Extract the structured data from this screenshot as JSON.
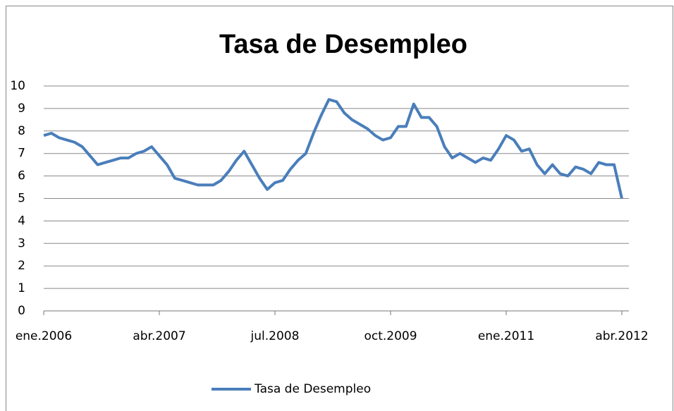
{
  "chart_data": {
    "type": "line",
    "title": "Tasa de Desempleo",
    "categories": [
      "ene.2006",
      null,
      null,
      null,
      null,
      null,
      null,
      null,
      null,
      null,
      null,
      null,
      null,
      null,
      null,
      "abr.2007",
      null,
      null,
      null,
      null,
      null,
      null,
      null,
      null,
      null,
      null,
      null,
      null,
      null,
      null,
      "jul.2008",
      null,
      null,
      null,
      null,
      null,
      null,
      null,
      null,
      null,
      null,
      null,
      null,
      null,
      null,
      "oct.2009",
      null,
      null,
      null,
      null,
      null,
      null,
      null,
      null,
      null,
      null,
      null,
      null,
      null,
      null,
      "ene.2011",
      null,
      null,
      null,
      null,
      null,
      null,
      null,
      null,
      null,
      null,
      null,
      null,
      null,
      null,
      "abr.2012"
    ],
    "series": [
      {
        "name": "Tasa de Desempleo",
        "color": "#4a7ebb",
        "values": [
          7.8,
          7.9,
          7.7,
          7.6,
          7.5,
          7.3,
          6.9,
          6.5,
          6.6,
          6.7,
          6.8,
          6.8,
          7.0,
          7.1,
          7.3,
          6.9,
          6.5,
          5.9,
          5.8,
          5.7,
          5.6,
          5.6,
          5.6,
          5.8,
          6.2,
          6.7,
          7.1,
          6.5,
          5.9,
          5.4,
          5.7,
          5.8,
          6.3,
          6.7,
          7.0,
          7.9,
          8.7,
          9.4,
          9.3,
          8.8,
          8.5,
          8.3,
          8.1,
          7.8,
          7.6,
          7.7,
          8.2,
          8.2,
          9.2,
          8.6,
          8.6,
          8.2,
          7.3,
          6.8,
          7.0,
          6.8,
          6.6,
          6.8,
          6.7,
          7.2,
          7.8,
          7.6,
          7.1,
          7.2,
          6.5,
          6.1,
          6.5,
          6.1,
          6.0,
          6.4,
          6.3,
          6.1,
          6.6,
          6.5,
          6.5,
          5.0
        ]
      }
    ],
    "ylim": [
      0,
      10
    ],
    "yticks": [
      0,
      1,
      2,
      3,
      4,
      5,
      6,
      7,
      8,
      9,
      10
    ],
    "grid": true,
    "legend": "bottom"
  }
}
